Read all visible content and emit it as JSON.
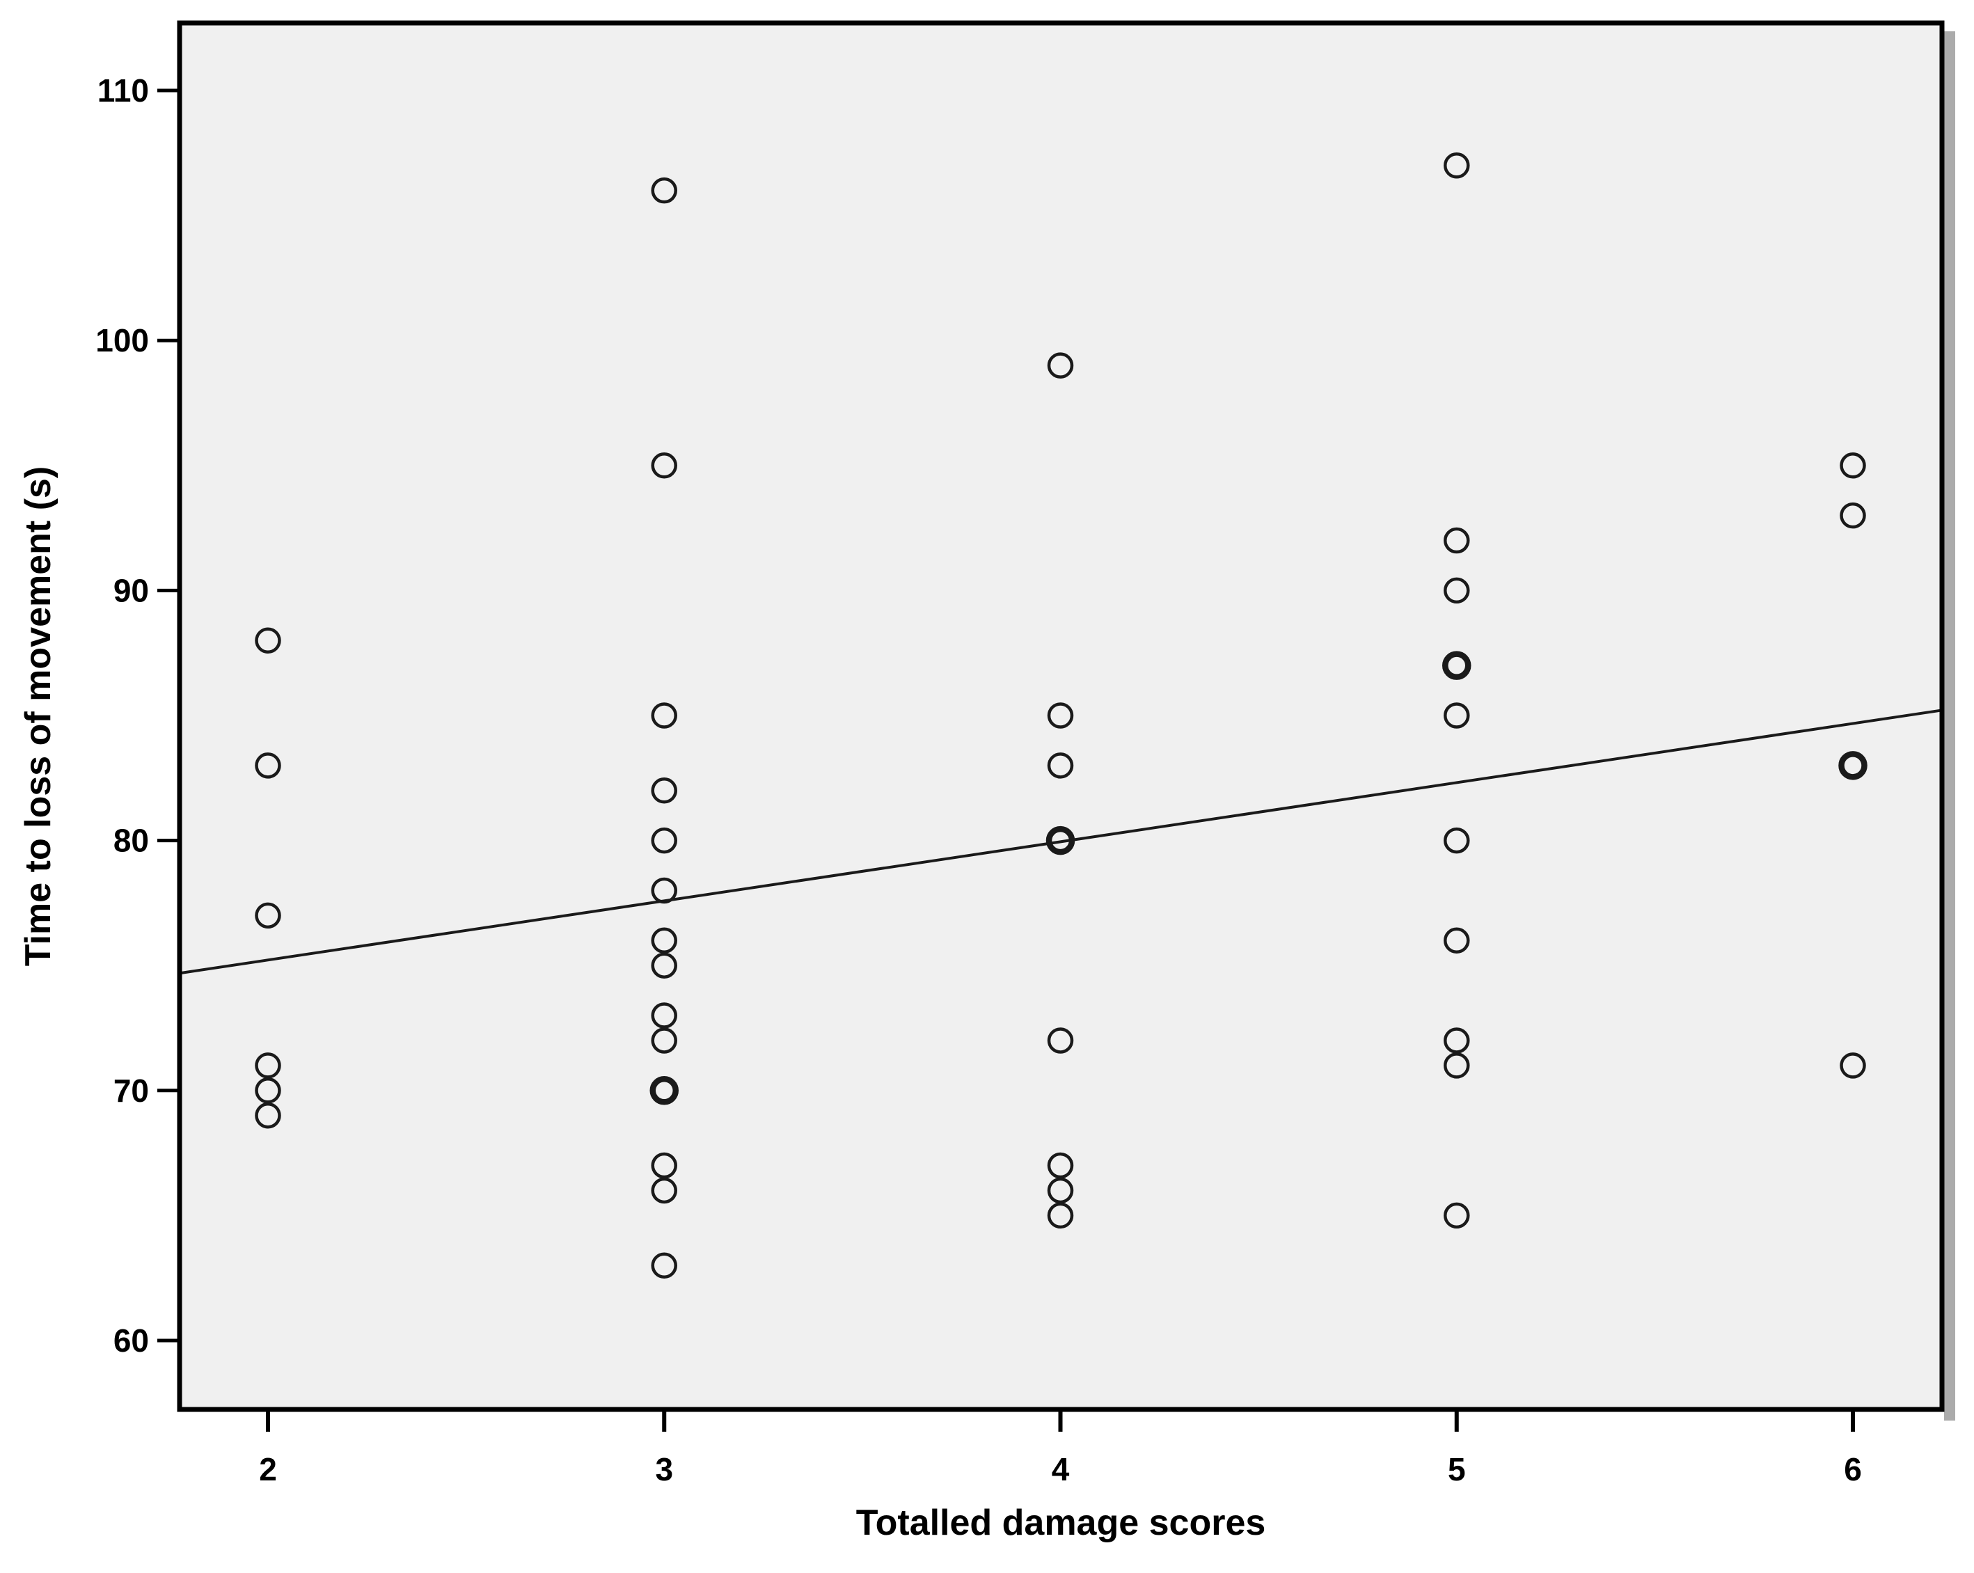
{
  "chart_data": {
    "type": "scatter",
    "title": "",
    "xlabel": "Totalled damage scores",
    "ylabel": "Time to loss of movement (s)",
    "x_ticks": [
      2,
      3,
      4,
      5,
      6
    ],
    "y_ticks": [
      60,
      70,
      80,
      90,
      100,
      110
    ],
    "xlim": [
      1.78,
      6.22
    ],
    "ylim": [
      57.2,
      112.7
    ],
    "grid": "off",
    "legend": "none",
    "marker": "open-circle",
    "marker_color": "#1a1a1a",
    "plot_bg_color": "#f0f0f0",
    "frame_color": "#000000",
    "shadow_color": "#ababab",
    "points": [
      {
        "x": 2,
        "y": 88
      },
      {
        "x": 2,
        "y": 83
      },
      {
        "x": 2,
        "y": 77
      },
      {
        "x": 2,
        "y": 71
      },
      {
        "x": 2,
        "y": 70
      },
      {
        "x": 2,
        "y": 69
      },
      {
        "x": 3,
        "y": 106
      },
      {
        "x": 3,
        "y": 95
      },
      {
        "x": 3,
        "y": 85
      },
      {
        "x": 3,
        "y": 82
      },
      {
        "x": 3,
        "y": 80
      },
      {
        "x": 3,
        "y": 78
      },
      {
        "x": 3,
        "y": 76
      },
      {
        "x": 3,
        "y": 75
      },
      {
        "x": 3,
        "y": 73
      },
      {
        "x": 3,
        "y": 72
      },
      {
        "x": 3,
        "y": 70
      },
      {
        "x": 3,
        "y": 70
      },
      {
        "x": 3,
        "y": 67
      },
      {
        "x": 3,
        "y": 66
      },
      {
        "x": 3,
        "y": 63
      },
      {
        "x": 4,
        "y": 99
      },
      {
        "x": 4,
        "y": 85
      },
      {
        "x": 4,
        "y": 83
      },
      {
        "x": 4,
        "y": 80
      },
      {
        "x": 4,
        "y": 80
      },
      {
        "x": 4,
        "y": 72
      },
      {
        "x": 4,
        "y": 67
      },
      {
        "x": 4,
        "y": 66
      },
      {
        "x": 4,
        "y": 65
      },
      {
        "x": 5,
        "y": 107
      },
      {
        "x": 5,
        "y": 92
      },
      {
        "x": 5,
        "y": 90
      },
      {
        "x": 5,
        "y": 87
      },
      {
        "x": 5,
        "y": 87
      },
      {
        "x": 5,
        "y": 85
      },
      {
        "x": 5,
        "y": 80
      },
      {
        "x": 5,
        "y": 76
      },
      {
        "x": 5,
        "y": 72
      },
      {
        "x": 5,
        "y": 71
      },
      {
        "x": 5,
        "y": 65
      },
      {
        "x": 6,
        "y": 95
      },
      {
        "x": 6,
        "y": 93
      },
      {
        "x": 6,
        "y": 83
      },
      {
        "x": 6,
        "y": 83
      },
      {
        "x": 6,
        "y": 71
      }
    ],
    "trendline": {
      "x1": 1.78,
      "y1": 74.7,
      "x2": 6.22,
      "y2": 85.2
    }
  }
}
